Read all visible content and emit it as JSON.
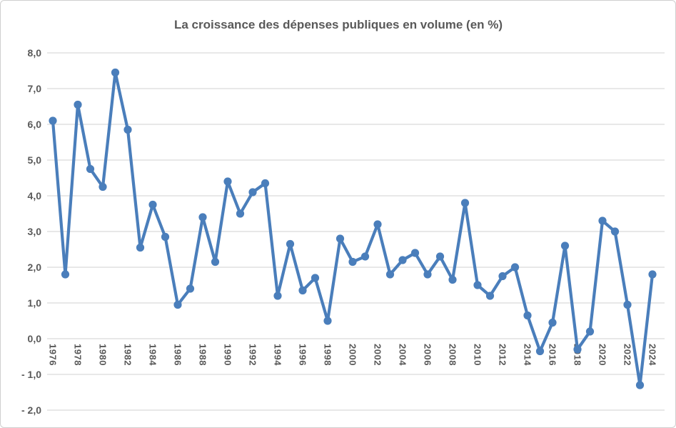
{
  "chart_data": {
    "type": "line",
    "title": "La croissance des dépenses publiques en volume (en %)",
    "xlabel": "",
    "ylabel": "",
    "x": [
      1976,
      1977,
      1978,
      1979,
      1980,
      1981,
      1982,
      1983,
      1984,
      1985,
      1986,
      1987,
      1988,
      1989,
      1990,
      1991,
      1992,
      1993,
      1994,
      1995,
      1996,
      1997,
      1998,
      1999,
      2000,
      2001,
      2002,
      2003,
      2004,
      2005,
      2006,
      2007,
      2008,
      2009,
      2010,
      2011,
      2012,
      2013,
      2014,
      2015,
      2016,
      2017,
      2018,
      2019,
      2020,
      2021,
      2022,
      2023,
      2024
    ],
    "values": [
      6.1,
      1.8,
      6.55,
      4.75,
      4.25,
      7.45,
      5.85,
      2.55,
      3.75,
      2.85,
      0.95,
      1.4,
      3.4,
      2.15,
      4.4,
      3.5,
      4.1,
      4.35,
      1.2,
      2.65,
      1.35,
      1.7,
      0.5,
      2.8,
      2.15,
      2.3,
      3.2,
      1.8,
      2.2,
      2.4,
      1.8,
      2.3,
      1.65,
      3.8,
      1.5,
      1.2,
      1.75,
      2.0,
      0.65,
      -0.35,
      0.45,
      2.6,
      -0.3,
      0.2,
      3.3,
      3.0,
      0.95,
      -1.3,
      1.8
    ],
    "x_tick_labels": [
      "1976",
      "1978",
      "1980",
      "1982",
      "1984",
      "1986",
      "1988",
      "1990",
      "1992",
      "1994",
      "1996",
      "1998",
      "2000",
      "2002",
      "2004",
      "2006",
      "2008",
      "2010",
      "2012",
      "2014",
      "2016",
      "2018",
      "2020",
      "2022",
      "2024"
    ],
    "y_ticks": [
      {
        "value": 8,
        "label": "8,0"
      },
      {
        "value": 7,
        "label": "7,0"
      },
      {
        "value": 6,
        "label": "6,0"
      },
      {
        "value": 5,
        "label": "5,0"
      },
      {
        "value": 4,
        "label": "4,0"
      },
      {
        "value": 3,
        "label": "3,0"
      },
      {
        "value": 2,
        "label": "2,0"
      },
      {
        "value": 1,
        "label": "1,0"
      },
      {
        "value": 0,
        "label": "0,0"
      },
      {
        "value": -1,
        "label": "- 1,0"
      },
      {
        "value": -2,
        "label": "- 2,0"
      }
    ],
    "ylim": [
      -2,
      8
    ],
    "xlim": [
      1976,
      2024
    ],
    "grid": true,
    "legend": "none",
    "marker": "circle",
    "colors": {
      "series": "#4a7ebb",
      "gridline": "#d9d9d9",
      "labels": "#595959",
      "background": "#ffffff"
    }
  }
}
